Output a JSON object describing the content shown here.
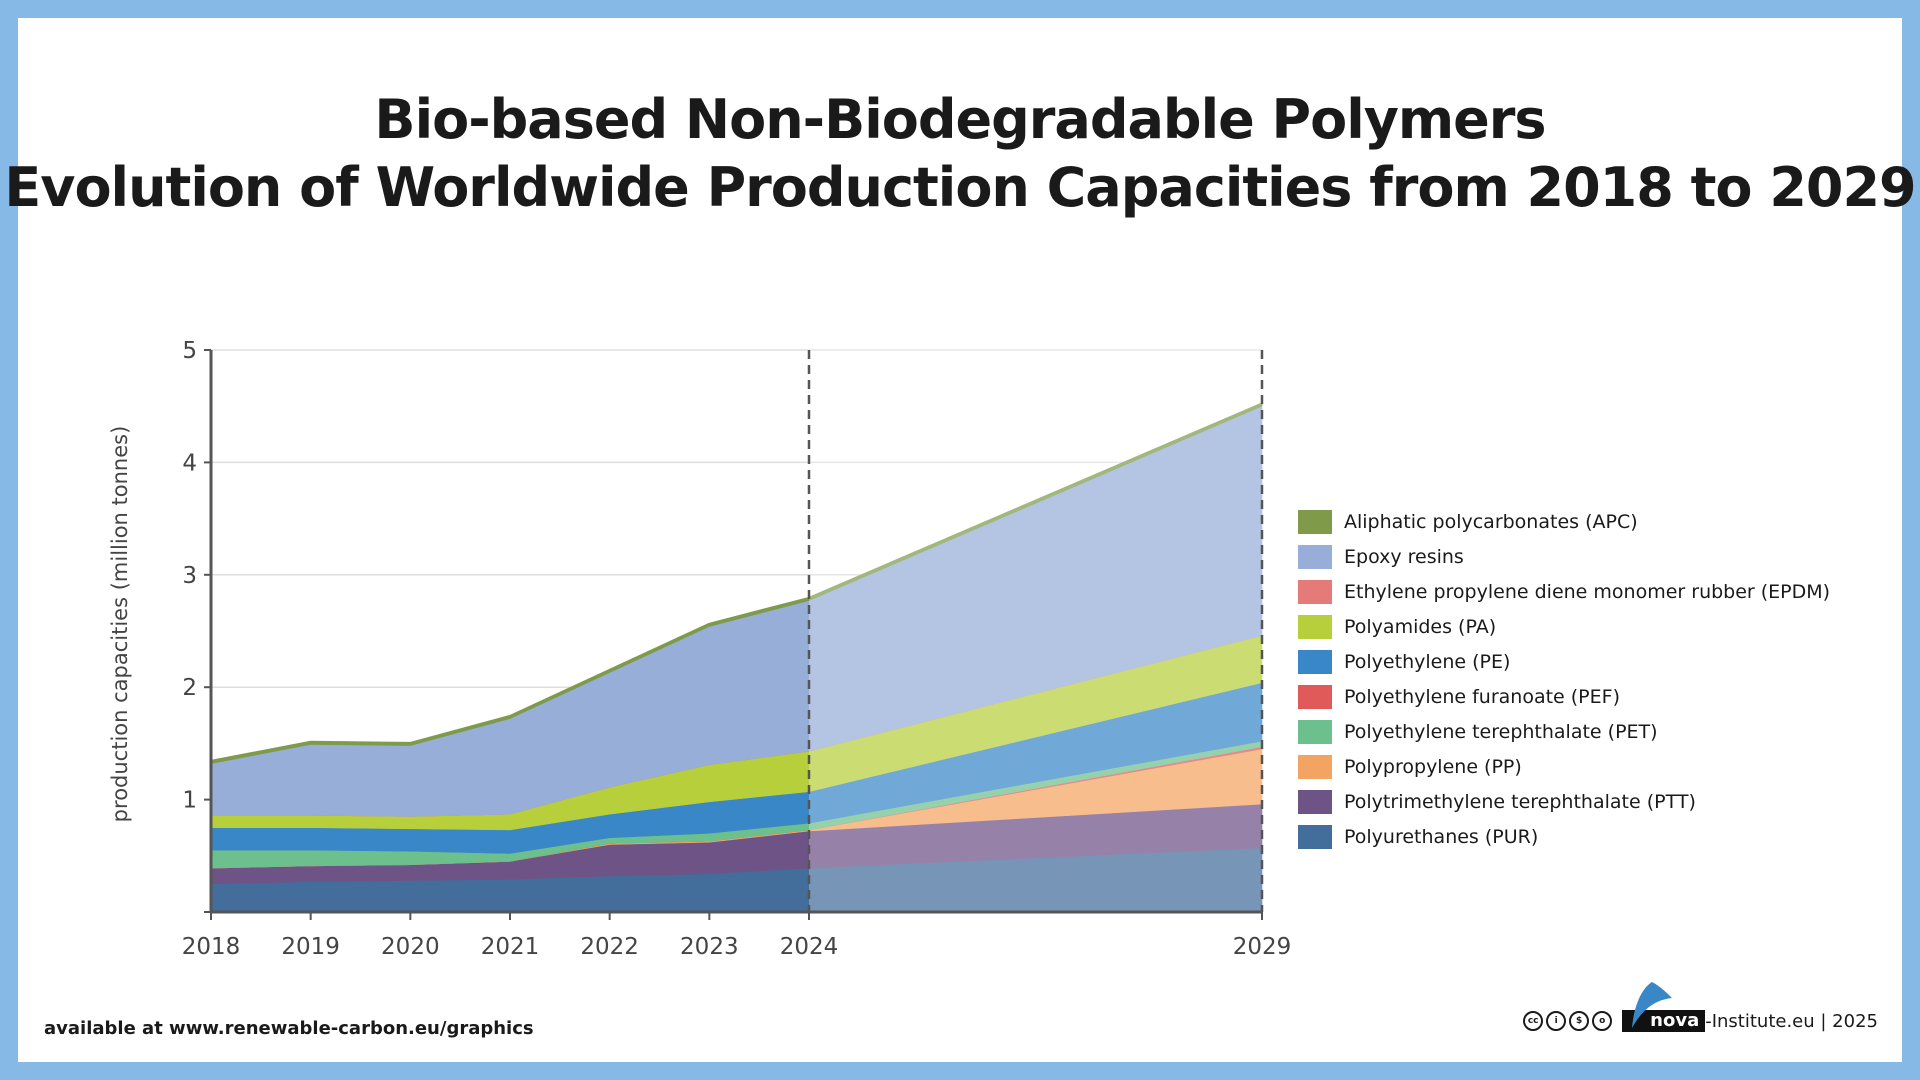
{
  "title": {
    "line1": "Bio-based Non-Biodegradable Polymers",
    "line2": "Evolution of Worldwide Production Capacities from 2018 to 2029"
  },
  "chart_data": {
    "type": "area",
    "stacked": true,
    "title": "Bio-based Non-Biodegradable Polymers Evolution of Worldwide Production Capacities from 2018 to 2029",
    "xlabel": "",
    "ylabel": "production capacities (million tonnes)",
    "x": [
      2018,
      2019,
      2020,
      2021,
      2022,
      2023,
      2024,
      2029
    ],
    "x_tick_labels": [
      "2018",
      "2019",
      "2020",
      "2021",
      "2022",
      "2023",
      "2024",
      "2029"
    ],
    "y_tick_labels": [
      "1",
      "2",
      "3",
      "4",
      "5"
    ],
    "ylim": [
      0,
      5
    ],
    "grid": true,
    "dashed_markers": [
      2024,
      2029
    ],
    "forecast_from": 2024,
    "legend_position": "right",
    "series": [
      {
        "name": "Polyurethanes (PUR)",
        "color": "#436d9b",
        "values": [
          0.25,
          0.27,
          0.28,
          0.29,
          0.32,
          0.34,
          0.39,
          0.57
        ]
      },
      {
        "name": "Polytrimethylene terephthalate (PTT)",
        "color": "#6e5387",
        "values": [
          0.14,
          0.14,
          0.14,
          0.16,
          0.28,
          0.28,
          0.33,
          0.39
        ]
      },
      {
        "name": "Polypropylene (PP)",
        "color": "#f4a462",
        "values": [
          0,
          0,
          0,
          0,
          0.01,
          0.01,
          0.01,
          0.49
        ]
      },
      {
        "name": "Polyethylene furanoate (PEF)",
        "color": "#e05a5a",
        "values": [
          0,
          0,
          0,
          0,
          0,
          0,
          0,
          0.02
        ]
      },
      {
        "name": "Polyethylene terephthalate (PET)",
        "color": "#6cc08e",
        "values": [
          0.16,
          0.14,
          0.12,
          0.07,
          0.05,
          0.07,
          0.06,
          0.05
        ]
      },
      {
        "name": "Polyethylene (PE)",
        "color": "#3a87c8",
        "values": [
          0.2,
          0.2,
          0.2,
          0.21,
          0.21,
          0.28,
          0.28,
          0.52
        ]
      },
      {
        "name": "Polyamides (PA)",
        "color": "#b8cf3c",
        "values": [
          0.11,
          0.11,
          0.11,
          0.14,
          0.24,
          0.33,
          0.36,
          0.42
        ]
      },
      {
        "name": "Ethylene propylene diene monomer rubber (EPDM)",
        "color": "#e57b79",
        "values": [
          0,
          0,
          0,
          0,
          0,
          0,
          0,
          0
        ]
      },
      {
        "name": "Epoxy resins",
        "color": "#97aed8",
        "values": [
          0.46,
          0.63,
          0.63,
          0.85,
          1.02,
          1.23,
          1.34,
          2.04
        ]
      },
      {
        "name": "Aliphatic polycarbonates (APC)",
        "color": "#7f9b4a",
        "values": [
          0.02,
          0.02,
          0.02,
          0.02,
          0.02,
          0.02,
          0.02,
          0.02
        ]
      }
    ]
  },
  "legend": [
    {
      "label": "Aliphatic polycarbonates (APC)",
      "color": "#7f9b4a"
    },
    {
      "label": "Epoxy resins",
      "color": "#97aed8"
    },
    {
      "label": "Ethylene propylene diene monomer rubber (EPDM)",
      "color": "#e57b79"
    },
    {
      "label": "Polyamides (PA)",
      "color": "#b8cf3c"
    },
    {
      "label": "Polyethylene (PE)",
      "color": "#3a87c8"
    },
    {
      "label": "Polyethylene furanoate (PEF)",
      "color": "#e05a5a"
    },
    {
      "label": "Polyethylene terephthalate (PET)",
      "color": "#6cc08e"
    },
    {
      "label": "Polypropylene (PP)",
      "color": "#f4a462"
    },
    {
      "label": "Polytrimethylene terephthalate (PTT)",
      "color": "#6e5387"
    },
    {
      "label": "Polyurethanes (PUR)",
      "color": "#436d9b"
    }
  ],
  "footer": {
    "source": "available at www.renewable-carbon.eu/graphics",
    "brand": "nova",
    "brand_suffix": "-Institute.eu | 2025",
    "license_icons": [
      "cc",
      "by",
      "nc",
      "sa"
    ]
  }
}
